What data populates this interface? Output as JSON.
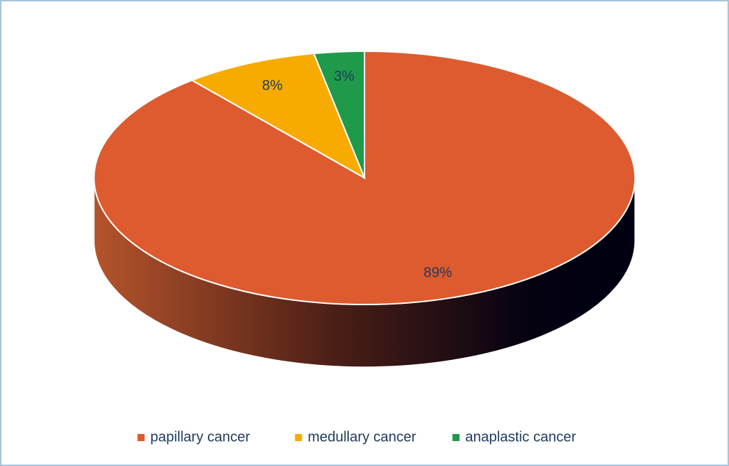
{
  "chart_data": {
    "type": "pie",
    "categories": [
      "papillary cancer",
      "medullary cancer",
      "anaplastic cancer"
    ],
    "values": [
      89,
      8,
      3
    ],
    "value_labels": [
      "89%",
      "8%",
      "3%"
    ],
    "colors": [
      "#dd5b2e",
      "#f7ab00",
      "#1f9a4a"
    ],
    "legend": "bottom"
  }
}
